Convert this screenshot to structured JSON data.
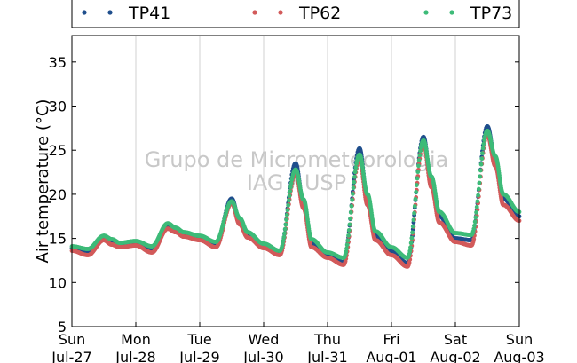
{
  "chart_data": {
    "type": "scatter",
    "ylabel": "Air temperature (°C)",
    "xlabel": "",
    "ylim": [
      5,
      38
    ],
    "xlim": [
      "2014-07-27 00:00",
      "2014-08-03 00:00"
    ],
    "yticks": [
      5,
      10,
      15,
      20,
      25,
      30,
      35
    ],
    "xticks": [
      {
        "day": "Sun",
        "date": "Jul-27"
      },
      {
        "day": "Mon",
        "date": "Jul-28"
      },
      {
        "day": "Tue",
        "date": "Jul-29"
      },
      {
        "day": "Wed",
        "date": "Jul-30"
      },
      {
        "day": "Thu",
        "date": "Jul-31"
      },
      {
        "day": "Fri",
        "date": "Aug-01"
      },
      {
        "day": "Sat",
        "date": "Aug-02"
      },
      {
        "day": "Sun",
        "date": "Aug-03"
      }
    ],
    "grid": "vertical",
    "legend_position": "top",
    "watermark": [
      "Grupo de Micrometeorologia",
      "IAG / USP"
    ],
    "series_template": {
      "x": [
        "07-27 00:00",
        "07-27 06:00",
        "07-27 12:00",
        "07-27 15:00",
        "07-27 18:00",
        "07-28 00:00",
        "07-28 06:00",
        "07-28 12:00",
        "07-28 15:00",
        "07-28 18:00",
        "07-29 00:00",
        "07-29 06:00",
        "07-29 12:00",
        "07-29 15:00",
        "07-29 18:00",
        "07-30 00:00",
        "07-30 06:00",
        "07-30 12:00",
        "07-30 15:00",
        "07-30 18:00",
        "07-31 00:00",
        "07-31 06:00",
        "07-31 12:00",
        "07-31 15:00",
        "07-31 18:00",
        "08-01 00:00",
        "08-01 06:00",
        "08-01 12:00",
        "08-01 15:00",
        "08-01 18:00",
        "08-02 00:00",
        "08-02 06:00",
        "08-02 12:00",
        "08-02 15:00",
        "08-02 18:00",
        "08-03 00:00"
      ]
    },
    "series": [
      {
        "name": "TP41",
        "color": "#1f4e8c",
        "y": [
          13.9,
          13.5,
          15.0,
          14.6,
          14.2,
          14.4,
          13.8,
          16.4,
          15.9,
          15.4,
          15.0,
          14.3,
          19.5,
          17.0,
          15.4,
          14.1,
          13.3,
          23.5,
          19.0,
          14.4,
          13.0,
          12.3,
          25.2,
          19.5,
          15.3,
          13.5,
          12.2,
          26.5,
          21.5,
          17.5,
          15.0,
          14.8,
          27.7,
          24.0,
          19.5,
          17.5
        ]
      },
      {
        "name": "TP62",
        "color": "#d25a5a",
        "y": [
          13.6,
          13.1,
          14.8,
          14.3,
          14.0,
          14.2,
          13.4,
          16.1,
          15.7,
          15.2,
          14.8,
          14.0,
          19.0,
          16.6,
          15.1,
          13.9,
          13.1,
          22.4,
          18.4,
          14.0,
          12.8,
          12.0,
          24.0,
          18.8,
          14.8,
          13.1,
          11.8,
          25.8,
          20.8,
          16.8,
          14.6,
          14.2,
          26.8,
          23.2,
          18.8,
          17.0
        ]
      },
      {
        "name": "TP73",
        "color": "#3dbb78",
        "y": [
          14.1,
          13.8,
          15.3,
          14.9,
          14.5,
          14.7,
          14.1,
          16.7,
          16.2,
          15.7,
          15.3,
          14.6,
          19.2,
          17.3,
          15.7,
          14.4,
          13.6,
          22.8,
          19.4,
          14.9,
          13.4,
          12.8,
          24.5,
          20.0,
          15.8,
          14.0,
          12.8,
          26.1,
          22.0,
          18.0,
          15.6,
          15.4,
          27.2,
          24.3,
          20.0,
          18.0
        ]
      }
    ]
  }
}
